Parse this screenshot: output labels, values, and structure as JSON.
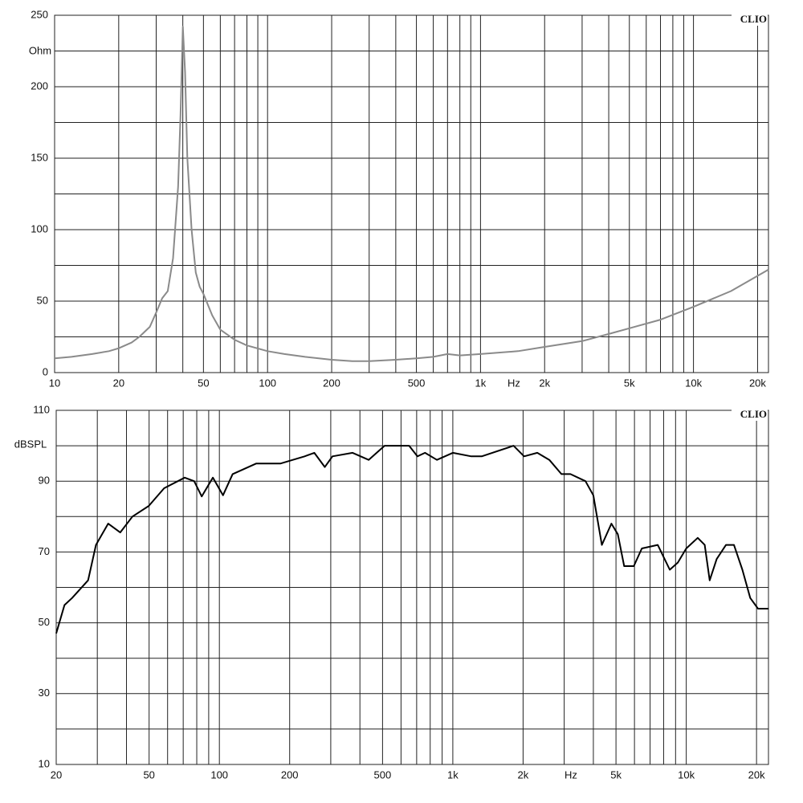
{
  "chart_data": [
    {
      "type": "line",
      "y_label": "Ohm",
      "x_unit": "Hz",
      "watermark": "CLIO",
      "log_x": true,
      "grid": true,
      "color": "#8a8a8a",
      "xlim": [
        10,
        22500
      ],
      "ylim": [
        0,
        250
      ],
      "xticks": [
        10,
        20,
        50,
        100,
        200,
        500,
        {
          "value": 1000,
          "label": "1k"
        },
        {
          "value": 2000,
          "label": "2k"
        },
        {
          "value": 5000,
          "label": "5k"
        },
        {
          "value": 10000,
          "label": "10k"
        },
        {
          "value": 20000,
          "label": "20k"
        }
      ],
      "yticks": [
        0,
        50,
        100,
        150,
        200,
        250
      ],
      "x": [
        10,
        12,
        15,
        18,
        20,
        23,
        25,
        28,
        30,
        32,
        34,
        36,
        38,
        39,
        40,
        41,
        42,
        44,
        46,
        48,
        50,
        55,
        60,
        70,
        80,
        100,
        120,
        150,
        200,
        250,
        300,
        400,
        500,
        600,
        700,
        800,
        1000,
        1500,
        2000,
        3000,
        4000,
        5000,
        7000,
        10000,
        15000,
        22500
      ],
      "values": [
        10,
        11,
        13,
        15,
        17,
        21,
        25,
        32,
        42,
        52,
        57,
        80,
        130,
        180,
        242,
        210,
        150,
        100,
        70,
        60,
        55,
        40,
        30,
        23,
        19,
        15,
        13,
        11,
        9,
        8,
        8,
        9,
        10,
        11,
        13,
        12,
        13,
        15,
        18,
        22,
        27,
        31,
        37,
        46,
        57,
        72
      ]
    },
    {
      "type": "line",
      "y_label": "dBSPL",
      "x_unit": "Hz",
      "watermark": "CLIO",
      "log_x": true,
      "grid": true,
      "color": "#000000",
      "xlim": [
        20,
        22500
      ],
      "ylim": [
        10,
        110
      ],
      "xticks": [
        20,
        50,
        100,
        200,
        500,
        {
          "value": 1000,
          "label": "1k"
        },
        {
          "value": 2000,
          "label": "2k"
        },
        {
          "value": 5000,
          "label": "5k"
        },
        {
          "value": 10000,
          "label": "10k"
        },
        {
          "value": 20000,
          "label": "20k"
        }
      ],
      "yticks": [
        10,
        30,
        50,
        70,
        90,
        110
      ],
      "x": [
        20,
        21.7,
        23.4,
        27.4,
        29.6,
        33.4,
        37.6,
        42.4,
        49.8,
        58,
        71,
        78,
        84,
        93.8,
        103.6,
        114,
        144,
        183,
        232,
        255,
        283,
        305,
        372,
        436,
        510,
        650,
        705,
        760,
        855,
        1000,
        1200,
        1330,
        1820,
        2020,
        2300,
        2590,
        2920,
        3190,
        3700,
        4000,
        4350,
        4780,
        5090,
        5420,
        5960,
        6450,
        7550,
        8500,
        9200,
        10000,
        11200,
        12000,
        12600,
        13500,
        14800,
        16000,
        17400,
        18800,
        20300,
        22500
      ],
      "values": [
        47,
        55,
        57,
        62,
        72,
        78,
        75.5,
        80,
        83,
        88,
        91,
        90,
        85.7,
        91,
        86,
        92,
        95,
        95,
        97,
        98,
        94,
        97,
        98,
        96,
        100,
        100,
        97,
        98,
        96,
        98,
        97,
        97,
        100,
        97,
        98,
        96,
        92,
        92,
        90,
        86,
        72,
        78,
        75,
        66,
        66,
        71,
        72,
        65,
        67,
        71,
        74,
        72,
        62,
        68,
        72,
        72,
        65,
        57,
        54,
        54
      ]
    }
  ]
}
